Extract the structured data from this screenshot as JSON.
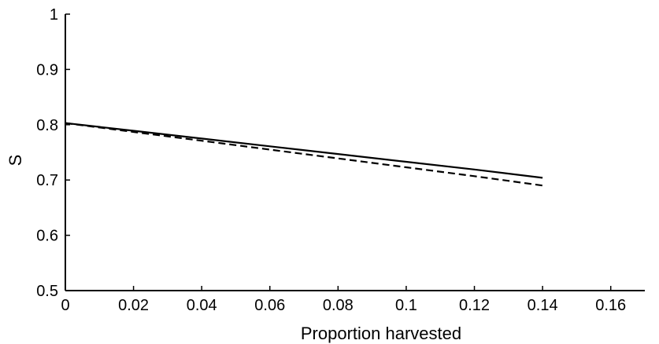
{
  "chart_data": {
    "type": "line",
    "title": "",
    "xlabel": "Proportion harvested",
    "ylabel": "S",
    "xlim": [
      0,
      0.17
    ],
    "ylim": [
      0.5,
      1
    ],
    "xticks": [
      0,
      0.02,
      0.04,
      0.06,
      0.08,
      0.1,
      0.12,
      0.14,
      0.16
    ],
    "xtick_labels": [
      "0",
      "0.02",
      "0.04",
      "0.06",
      "0.08",
      "0.1",
      "0.12",
      "0.14",
      "0.16"
    ],
    "yticks": [
      0.5,
      0.6,
      0.7,
      0.8,
      0.9,
      1
    ],
    "ytick_labels": [
      "0.5",
      "0.6",
      "0.7",
      "0.8",
      "0.9",
      "1"
    ],
    "grid": false,
    "legend": "none",
    "series": [
      {
        "style": "solid",
        "color": "#000000",
        "x": [
          0,
          0.02,
          0.04,
          0.06,
          0.08,
          0.1,
          0.12,
          0.14
        ],
        "y": [
          0.803,
          0.789,
          0.775,
          0.761,
          0.747,
          0.733,
          0.719,
          0.704
        ]
      },
      {
        "style": "dashed",
        "color": "#000000",
        "x": [
          0,
          0.02,
          0.04,
          0.06,
          0.08,
          0.1,
          0.12,
          0.14
        ],
        "y": [
          0.803,
          0.787,
          0.771,
          0.755,
          0.739,
          0.723,
          0.707,
          0.69
        ]
      }
    ]
  }
}
